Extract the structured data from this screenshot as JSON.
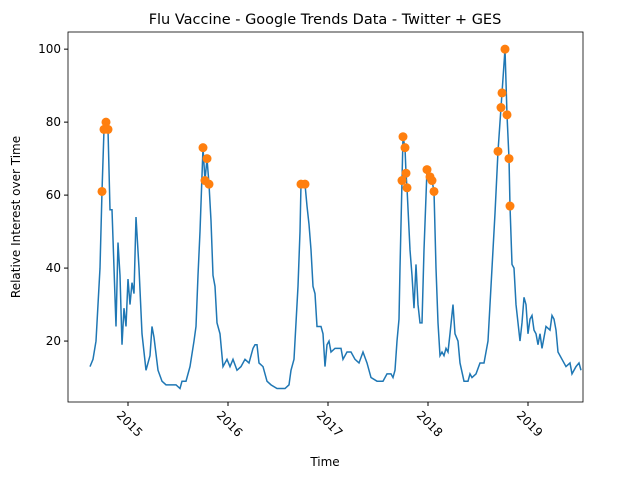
{
  "chart_data": {
    "type": "line",
    "title": "Flu Vaccine - Google Trends Data - Twitter + GES",
    "x_label": "Time",
    "y_label": "Relative Interest over Time",
    "xlim": [
      2014.4,
      2019.55
    ],
    "xticks": [
      2015,
      2016,
      2017,
      2018,
      2019
    ],
    "ylim": [
      3.3,
      104.7
    ],
    "yticks": [
      20,
      40,
      60,
      80,
      100
    ],
    "grid": false,
    "series": [
      {
        "type": "line",
        "color": "#1f77b4",
        "x": [
          2014.62,
          2014.65,
          2014.68,
          2014.7,
          2014.72,
          2014.74,
          2014.76,
          2014.78,
          2014.8,
          2014.82,
          2014.84,
          2014.86,
          2014.88,
          2014.9,
          2014.92,
          2014.94,
          2014.96,
          2014.98,
          2015.0,
          2015.02,
          2015.04,
          2015.06,
          2015.08,
          2015.11,
          2015.14,
          2015.18,
          2015.22,
          2015.24,
          2015.26,
          2015.3,
          2015.34,
          2015.38,
          2015.48,
          2015.52,
          2015.54,
          2015.58,
          2015.62,
          2015.66,
          2015.68,
          2015.7,
          2015.72,
          2015.75,
          2015.77,
          2015.79,
          2015.81,
          2015.83,
          2015.85,
          2015.87,
          2015.89,
          2015.92,
          2015.95,
          2015.99,
          2016.02,
          2016.05,
          2016.09,
          2016.13,
          2016.17,
          2016.21,
          2016.25,
          2016.27,
          2016.29,
          2016.31,
          2016.35,
          2016.39,
          2016.43,
          2016.49,
          2016.57,
          2016.61,
          2016.63,
          2016.66,
          2016.68,
          2016.7,
          2016.72,
          2016.73,
          2016.77,
          2016.79,
          2016.81,
          2016.83,
          2016.85,
          2016.87,
          2016.89,
          2016.93,
          2016.95,
          2016.97,
          2016.99,
          2017.01,
          2017.03,
          2017.07,
          2017.13,
          2017.15,
          2017.19,
          2017.23,
          2017.27,
          2017.31,
          2017.35,
          2017.39,
          2017.43,
          2017.49,
          2017.55,
          2017.59,
          2017.63,
          2017.65,
          2017.67,
          2017.69,
          2017.71,
          2017.72,
          2017.74,
          2017.75,
          2017.77,
          2017.78,
          2017.79,
          2017.82,
          2017.84,
          2017.86,
          2017.88,
          2017.9,
          2017.92,
          2017.94,
          2017.96,
          2017.99,
          2018.02,
          2018.04,
          2018.06,
          2018.08,
          2018.1,
          2018.12,
          2018.14,
          2018.16,
          2018.18,
          2018.2,
          2018.22,
          2018.25,
          2018.27,
          2018.3,
          2018.32,
          2018.36,
          2018.4,
          2018.42,
          2018.44,
          2018.48,
          2018.52,
          2018.56,
          2018.6,
          2018.64,
          2018.67,
          2018.7,
          2018.73,
          2018.74,
          2018.77,
          2018.79,
          2018.81,
          2018.82,
          2018.84,
          2018.86,
          2018.88,
          2018.9,
          2018.92,
          2018.94,
          2018.96,
          2018.98,
          2019.0,
          2019.02,
          2019.04,
          2019.06,
          2019.08,
          2019.1,
          2019.12,
          2019.14,
          2019.18,
          2019.22,
          2019.24,
          2019.26,
          2019.28,
          2019.3,
          2019.34,
          2019.38,
          2019.42,
          2019.44,
          2019.48,
          2019.51,
          2019.53
        ],
        "values": [
          13,
          15,
          20,
          30,
          40,
          61,
          78,
          80,
          78,
          56,
          56,
          40,
          24,
          47,
          38,
          19,
          29,
          24,
          37,
          30,
          36,
          33,
          54,
          40,
          22,
          12,
          16,
          24,
          21,
          12,
          9,
          8,
          8,
          7,
          9,
          9,
          13,
          20,
          24,
          38,
          50,
          73,
          64,
          70,
          63,
          53,
          38,
          35,
          25,
          22,
          13,
          15,
          13,
          15,
          12,
          13,
          15,
          14,
          18,
          19,
          19,
          14,
          13,
          9,
          8,
          7,
          7,
          8,
          12,
          15,
          25,
          35,
          50,
          63,
          63,
          57,
          52,
          45,
          35,
          33,
          24,
          24,
          22,
          13,
          19,
          20,
          17,
          18,
          18,
          15,
          17,
          17,
          15,
          14,
          17,
          14,
          10,
          9,
          9,
          11,
          11,
          10,
          12,
          20,
          26,
          40,
          64,
          76,
          73,
          66,
          62,
          45,
          38,
          29,
          41,
          30,
          25,
          25,
          45,
          67,
          65,
          64,
          61,
          40,
          25,
          16,
          17,
          16,
          18,
          17,
          22,
          30,
          22,
          20,
          14,
          9,
          9,
          11,
          10,
          11,
          14,
          14,
          20,
          40,
          55,
          72,
          84,
          88,
          100,
          82,
          70,
          57,
          41,
          40,
          30,
          25,
          20,
          25,
          32,
          30,
          22,
          26,
          27,
          23,
          22,
          19,
          22,
          18,
          24,
          23,
          27,
          26,
          23,
          17,
          15,
          13,
          14,
          11,
          13,
          14,
          12
        ]
      },
      {
        "type": "scatter",
        "color": "#ff7f0e",
        "x": [
          2014.74,
          2014.76,
          2014.78,
          2014.8,
          2015.75,
          2015.77,
          2015.79,
          2015.81,
          2016.73,
          2016.77,
          2017.74,
          2017.75,
          2017.77,
          2017.78,
          2017.79,
          2017.99,
          2018.02,
          2018.04,
          2018.06,
          2018.7,
          2018.73,
          2018.74,
          2018.77,
          2018.79,
          2018.81,
          2018.82
        ],
        "values": [
          61,
          78,
          80,
          78,
          73,
          64,
          70,
          63,
          63,
          63,
          64,
          76,
          73,
          66,
          62,
          67,
          65,
          64,
          61,
          72,
          84,
          88,
          100,
          82,
          70,
          57
        ]
      }
    ]
  }
}
